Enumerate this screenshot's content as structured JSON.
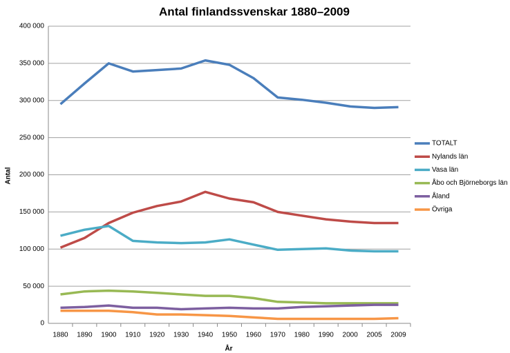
{
  "chart_data": {
    "type": "line",
    "title": "Antal finlandssvenskar 1880–2009",
    "x_label": "År",
    "y_label": "Antal",
    "categories": [
      "1880",
      "1890",
      "1900",
      "1910",
      "1920",
      "1930",
      "1940",
      "1950",
      "1960",
      "1970",
      "1980",
      "1990",
      "2000",
      "2005",
      "2009"
    ],
    "series": [
      {
        "name": "TOTALT",
        "color": "#4a7ebb",
        "values": [
          295000,
          323000,
          350000,
          339000,
          341000,
          343000,
          354000,
          348000,
          330000,
          304000,
          301000,
          297000,
          292000,
          290000,
          291000
        ]
      },
      {
        "name": "Nylands län",
        "color": "#be4b48",
        "values": [
          102000,
          115000,
          135000,
          149000,
          158000,
          164000,
          177000,
          168000,
          163000,
          150000,
          145000,
          140000,
          137000,
          135000,
          135000
        ]
      },
      {
        "name": "Vasa län",
        "color": "#4bacc6",
        "values": [
          118000,
          126000,
          131000,
          111000,
          109000,
          108000,
          109000,
          113000,
          106000,
          99000,
          100000,
          101000,
          98000,
          97000,
          97000
        ]
      },
      {
        "name": "Åbo och Björneborgs län",
        "color": "#98b954",
        "values": [
          39000,
          43000,
          44000,
          43000,
          41000,
          39000,
          37000,
          37000,
          34000,
          29000,
          28000,
          27000,
          27000,
          27000,
          27000
        ]
      },
      {
        "name": "Åland",
        "color": "#7d5fa0",
        "values": [
          21000,
          22000,
          24000,
          21000,
          21000,
          19000,
          20000,
          21000,
          20000,
          20000,
          22000,
          23000,
          24000,
          25000,
          25000
        ]
      },
      {
        "name": "Övriga",
        "color": "#f79646",
        "values": [
          17000,
          17000,
          17000,
          15000,
          12000,
          12000,
          11000,
          10000,
          8000,
          6000,
          6000,
          6000,
          6000,
          6000,
          7000
        ]
      }
    ],
    "ylim": [
      0,
      400000
    ],
    "yticks": [
      {
        "value": 0,
        "label": "0"
      },
      {
        "value": 50000,
        "label": "50 000"
      },
      {
        "value": 100000,
        "label": "100 000"
      },
      {
        "value": 150000,
        "label": "150 000"
      },
      {
        "value": 200000,
        "label": "200 000"
      },
      {
        "value": 250000,
        "label": "250 000"
      },
      {
        "value": 300000,
        "label": "300 000"
      },
      {
        "value": 350000,
        "label": "350 000"
      },
      {
        "value": 400000,
        "label": "400 000"
      }
    ],
    "grid": true,
    "legend": "right"
  }
}
